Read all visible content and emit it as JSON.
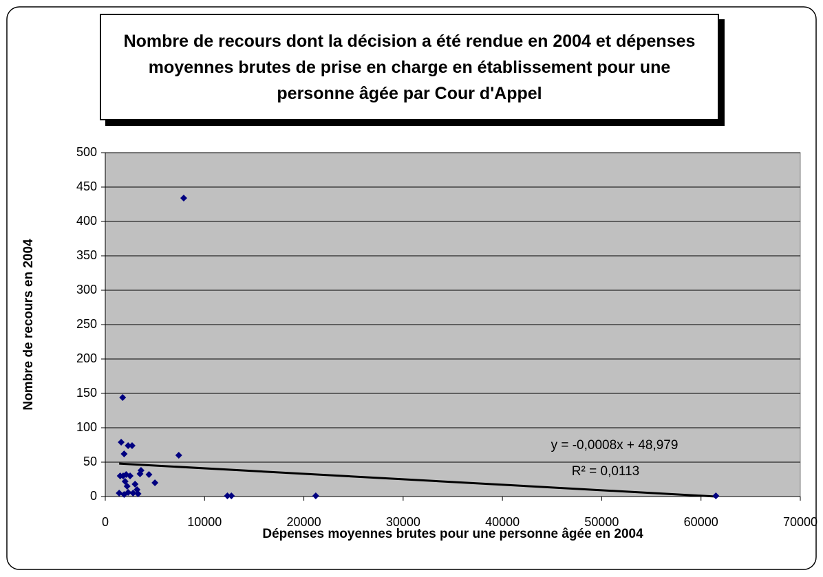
{
  "chart_data": {
    "type": "scatter",
    "title": "Nombre de recours dont la décision a été rendue en 2004 et dépenses moyennes brutes de prise en charge en établissement pour une personne âgée par Cour d'Appel",
    "x_label": "Dépenses moyennes brutes pour une personne âgée en 2004",
    "y_label": "Nombre de recours en 2004",
    "series": [
      {
        "color": "#000080",
        "x": [
          7900,
          1750,
          1600,
          2300,
          2700,
          1900,
          7400,
          1500,
          1800,
          2100,
          2500,
          3500,
          3600,
          4400,
          5000,
          2000,
          2200,
          3000,
          3200,
          2300,
          1400,
          1900,
          3300,
          2800,
          12300,
          12700,
          21200,
          61500
        ],
        "values": [
          434,
          144,
          79,
          74,
          74,
          62,
          60,
          30,
          30,
          32,
          30,
          33,
          38,
          32,
          20,
          22,
          15,
          18,
          10,
          6,
          5,
          3,
          4,
          5,
          1,
          1,
          1,
          1
        ]
      }
    ],
    "trendline": {
      "color": "#000000",
      "x": [
        1400,
        61500
      ],
      "values": [
        47.9,
        0
      ]
    },
    "annotations": [
      "y = -0,0008x + 48,979",
      "R² = 0,0113"
    ],
    "xlim": [
      0,
      70000
    ],
    "xticks": [
      0,
      10000,
      20000,
      30000,
      40000,
      50000,
      60000,
      70000
    ],
    "ylim": [
      0,
      500
    ],
    "yticks": [
      0,
      50,
      100,
      150,
      200,
      250,
      300,
      350,
      400,
      450,
      500
    ],
    "grid": true,
    "plot_background": "#c0c0c0"
  }
}
